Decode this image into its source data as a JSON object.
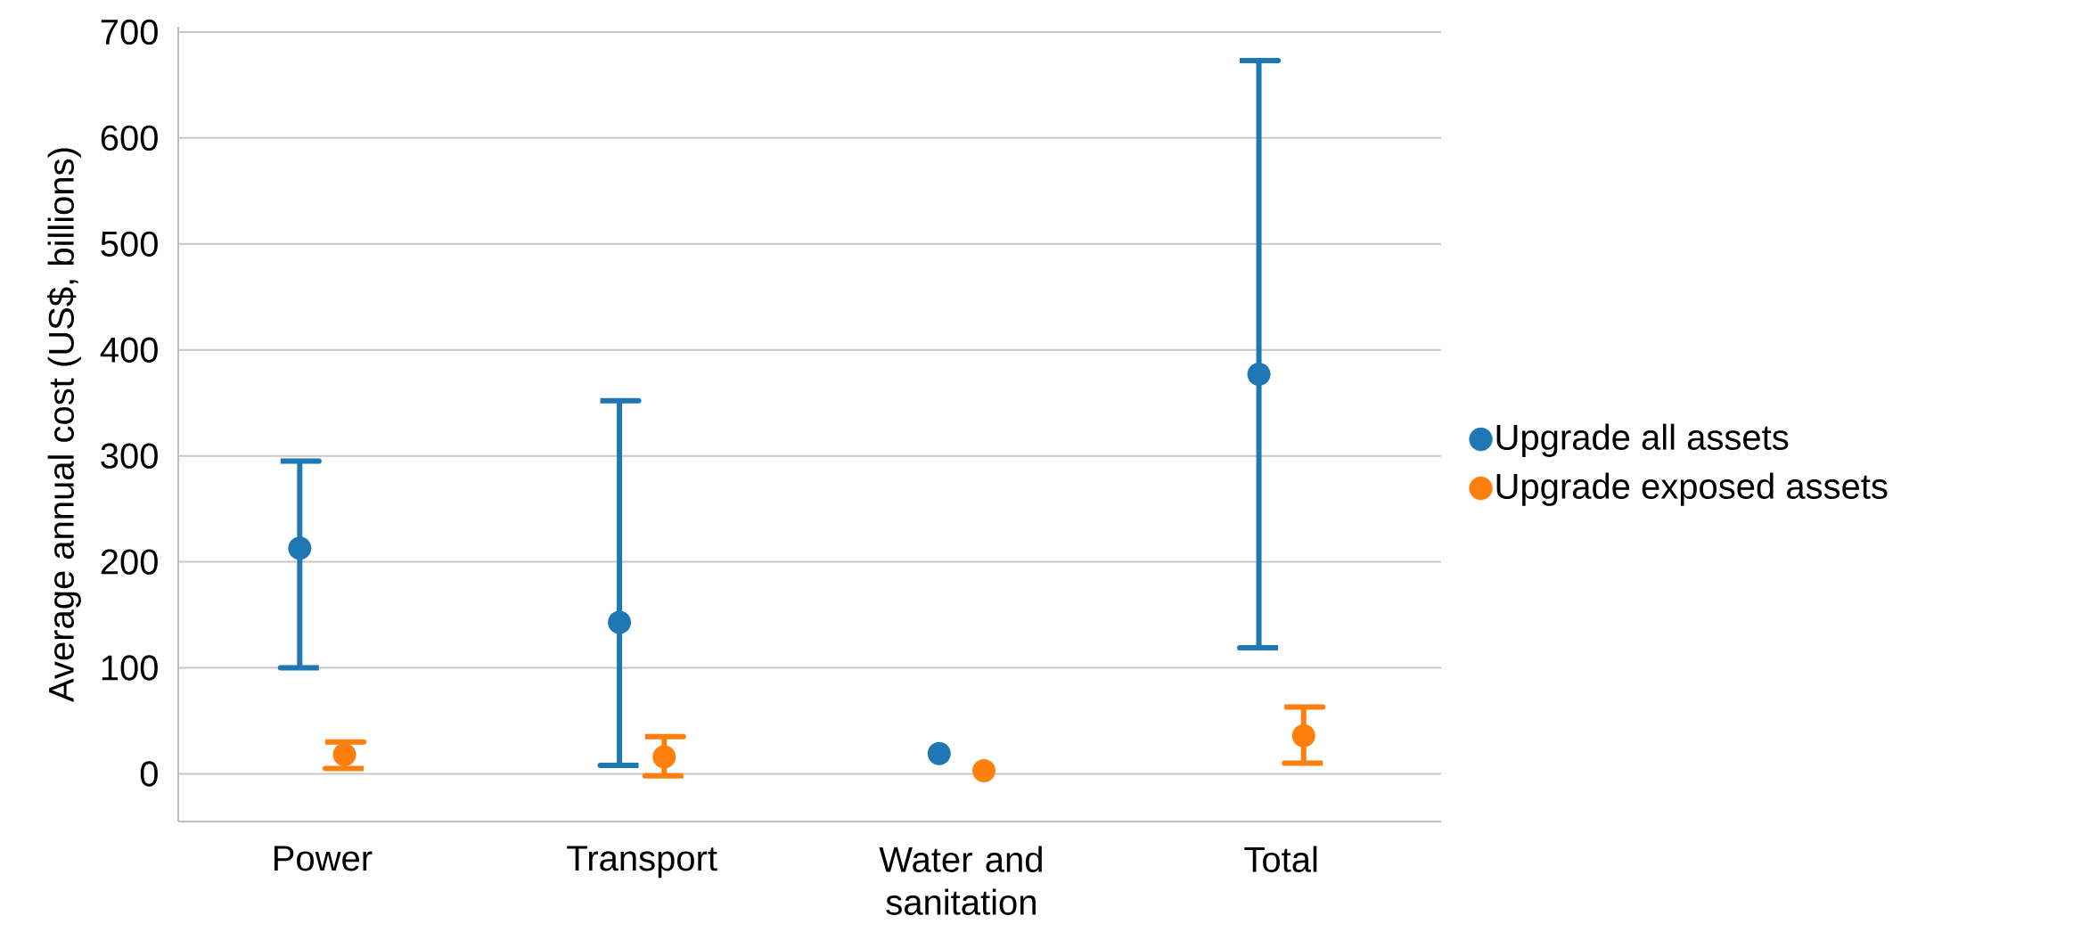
{
  "chart_data": {
    "type": "scatter",
    "ylabel": "Average annual cost (US$, billions)",
    "categories": [
      "Power",
      "Transport",
      "Water and sanitation",
      "Total"
    ],
    "series": [
      {
        "name": "Upgrade all assets",
        "color": "#1f77b4",
        "values": [
          213,
          143,
          19,
          377
        ],
        "errors": [
          [
            100,
            295
          ],
          [
            8,
            352
          ],
          null,
          [
            119,
            673
          ]
        ]
      },
      {
        "name": "Upgrade exposed assets",
        "color": "#ff7f0e",
        "values": [
          18,
          16,
          3,
          36
        ],
        "errors": [
          [
            5,
            30
          ],
          [
            -2,
            35
          ],
          null,
          [
            10,
            63
          ]
        ]
      }
    ],
    "ylim": [
      -45,
      705
    ],
    "yticks": [
      0,
      100,
      200,
      300,
      400,
      500,
      600,
      700
    ],
    "grid": "y",
    "legend": "right",
    "marker": "circle"
  }
}
